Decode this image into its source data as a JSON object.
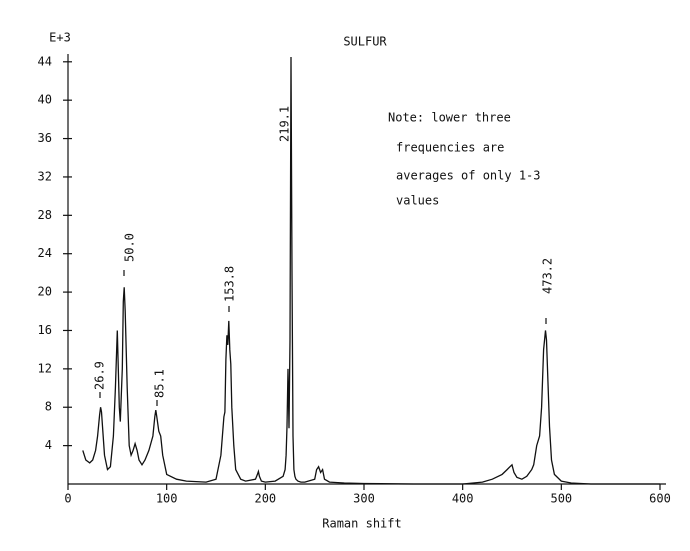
{
  "chart_data": {
    "type": "line",
    "title": "SULFUR",
    "xlabel": "Raman shift",
    "ylabel": "E+3",
    "xlim": [
      0,
      600
    ],
    "xticks": [
      0,
      100,
      200,
      300,
      400,
      500,
      600
    ],
    "ylim": [
      0,
      44.5
    ],
    "yticks": [
      4,
      8,
      12,
      16,
      20,
      24,
      28,
      32,
      36,
      40,
      44
    ],
    "color": "#111111",
    "annotations": [
      "26.9",
      "50.0",
      "85.1",
      "153.8",
      "219.1",
      "473.2"
    ],
    "note": [
      "Note:  lower three",
      "frequencies are",
      "averages of only 1-3",
      "values"
    ],
    "x": [
      15,
      18,
      22,
      25,
      28,
      30,
      32,
      33,
      34,
      35,
      37,
      40,
      43,
      46,
      48,
      50,
      51,
      52,
      53,
      55,
      56,
      57,
      58,
      60,
      62,
      64,
      66,
      68,
      70,
      72,
      75,
      78,
      82,
      86,
      88,
      89,
      90,
      92,
      94,
      96,
      100,
      110,
      120,
      140,
      150,
      155,
      158,
      159,
      160,
      161,
      162,
      163,
      164,
      165,
      166,
      168,
      170,
      175,
      180,
      190,
      192,
      193,
      194,
      196,
      200,
      210,
      218,
      220,
      221,
      222,
      223,
      224,
      225,
      226,
      227,
      228,
      229,
      230,
      231,
      233,
      236,
      240,
      250,
      252,
      254,
      256,
      258,
      260,
      265,
      280,
      300,
      350,
      400,
      420,
      430,
      440,
      445,
      448,
      450,
      452,
      455,
      460,
      465,
      470,
      472,
      475,
      478,
      480,
      482,
      484,
      485,
      486,
      488,
      490,
      493,
      500,
      510,
      530,
      600
    ],
    "values": [
      3.5,
      2.5,
      2.2,
      2.5,
      3.5,
      5,
      7.2,
      8,
      7.5,
      6,
      3,
      1.5,
      1.8,
      5,
      10,
      16,
      12,
      8,
      6.5,
      12,
      19,
      20.5,
      18,
      10,
      4,
      3,
      3.5,
      4.2,
      3.5,
      2.5,
      2,
      2.5,
      3.5,
      5,
      7,
      7.7,
      7,
      5.5,
      5,
      3,
      1,
      0.5,
      0.3,
      0.2,
      0.5,
      3,
      7,
      7.5,
      13,
      15.5,
      14.5,
      17,
      14,
      12.5,
      8,
      4,
      1.5,
      0.5,
      0.3,
      0.5,
      1,
      1.3,
      0.8,
      0.3,
      0.2,
      0.3,
      0.8,
      1.5,
      3,
      6,
      12,
      5.8,
      15,
      44.5,
      22,
      5,
      1.5,
      0.8,
      0.5,
      0.3,
      0.2,
      0.2,
      0.5,
      1.5,
      1.8,
      1.2,
      1.5,
      0.5,
      0.2,
      0.1,
      0.05,
      0,
      0,
      0.2,
      0.5,
      1,
      1.5,
      1.8,
      2,
      1.2,
      0.7,
      0.5,
      0.8,
      1.5,
      2,
      4,
      5,
      8,
      14,
      16,
      15,
      12,
      6,
      2.5,
      1,
      0.3,
      0.1,
      0,
      0
    ]
  }
}
